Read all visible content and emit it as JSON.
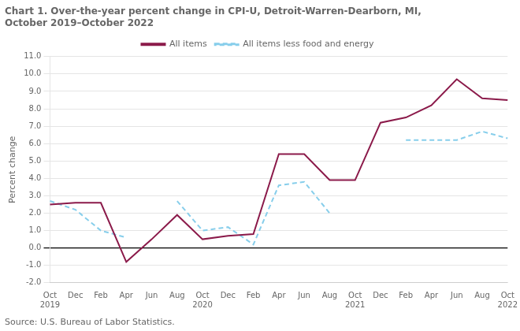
{
  "chart_data": {
    "type": "line",
    "title": "Chart 1. Over-the-year percent change in CPI-U, Detroit-Warren-Dearborn, MI,\nOctober 2019–October 2022",
    "ylabel": "Percent change",
    "source": "Source: U.S. Bureau of Labor Statistics.",
    "categories": [
      "Oct\n2019",
      "Dec",
      "Feb",
      "Apr",
      "Jun",
      "Aug",
      "Oct\n2020",
      "Dec",
      "Feb",
      "Apr",
      "Jun",
      "Aug",
      "Oct\n2021",
      "Dec",
      "Feb",
      "Apr",
      "Jun",
      "Aug",
      "Oct\n2022"
    ],
    "series": [
      {
        "name": "All items",
        "color": "#8B1A4A",
        "line_style": "solid",
        "values": [
          2.5,
          2.6,
          2.6,
          -0.8,
          0.5,
          1.9,
          0.5,
          0.7,
          0.8,
          5.4,
          5.4,
          3.9,
          3.9,
          7.2,
          7.5,
          8.2,
          9.7,
          8.6,
          8.5
        ]
      },
      {
        "name": "All items less food and energy",
        "color": "#87CEEB",
        "line_style": "dashed",
        "values": [
          2.7,
          2.2,
          1.0,
          0.6,
          null,
          2.7,
          1.0,
          1.2,
          0.2,
          3.6,
          3.8,
          2.0,
          null,
          null,
          6.2,
          6.2,
          6.2,
          6.7,
          6.3
        ]
      }
    ],
    "ylim": [
      -2,
      11
    ],
    "yticks": [
      {
        "value": -2,
        "label": "-2.0"
      },
      {
        "value": -1,
        "label": "-1.0"
      },
      {
        "value": 0,
        "label": "0.0"
      },
      {
        "value": 1,
        "label": "1.0"
      },
      {
        "value": 2,
        "label": "2.0"
      },
      {
        "value": 3,
        "label": "3.0"
      },
      {
        "value": 4,
        "label": "4.0"
      },
      {
        "value": 5,
        "label": "5.0"
      },
      {
        "value": 6,
        "label": "6.0"
      },
      {
        "value": 7,
        "label": "7.0"
      },
      {
        "value": 8,
        "label": "8.0"
      },
      {
        "value": 9,
        "label": "9.0"
      },
      {
        "value": 10,
        "label": "10.0"
      },
      {
        "value": 11,
        "label": "11.0"
      }
    ],
    "grid": "y",
    "legend": "top"
  }
}
